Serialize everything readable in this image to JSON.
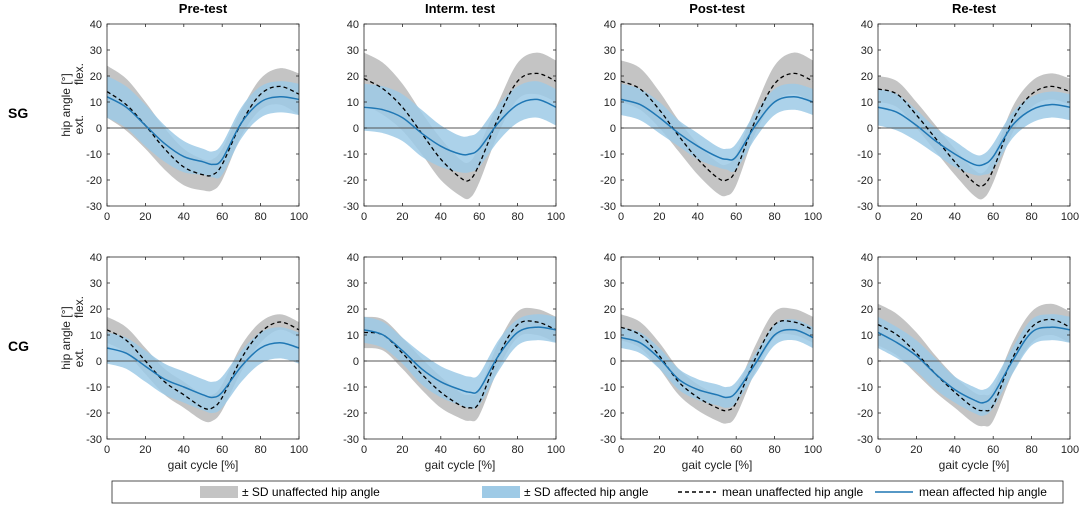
{
  "chart_data": {
    "type": "line",
    "row_labels": [
      "SG",
      "CG"
    ],
    "column_titles": [
      "Pre-test",
      "Interm. test",
      "Post-test",
      "Re-test"
    ],
    "ylabel": "hip angle [°]",
    "ylabel_flex": "flex.",
    "ylabel_ext": "ext.",
    "xlabel": "gait cycle [%]",
    "xlim": [
      0,
      100
    ],
    "ylim": [
      -30,
      40
    ],
    "x_ticks": [
      0,
      20,
      40,
      60,
      80,
      100
    ],
    "y_ticks": [
      -30,
      -20,
      -10,
      0,
      10,
      20,
      30,
      40
    ],
    "legend": [
      {
        "label": "± SD unaffected hip angle",
        "kind": "band",
        "color": "#c4c4c4"
      },
      {
        "label": "± SD affected hip angle",
        "kind": "band",
        "color": "#9ecae6"
      },
      {
        "label": "mean unaffected hip angle",
        "kind": "dashed",
        "color": "#000000"
      },
      {
        "label": "mean affected hip angle",
        "kind": "line",
        "color": "#1f77b4"
      }
    ],
    "colors": {
      "unaffected_band": "#c4c4c4",
      "affected_band": "#9ecae6",
      "overlap_band": "#4a8fc4",
      "affected_mean": "#1f77b4",
      "unaffected_mean": "#000000",
      "zero_line": "#555555"
    },
    "x": [
      0,
      10,
      20,
      30,
      40,
      50,
      55,
      60,
      70,
      80,
      90,
      100
    ],
    "panels": [
      {
        "row": "SG",
        "column": "Pre-test",
        "unaffected_mean": [
          14,
          9,
          1,
          -8,
          -15,
          -18,
          -18,
          -14,
          2,
          13,
          16,
          13
        ],
        "unaffected_sd": [
          10,
          10,
          9,
          8,
          7,
          6,
          6,
          6,
          5,
          6,
          7,
          8
        ],
        "affected_mean": [
          12,
          8,
          1,
          -6,
          -11,
          -13,
          -14,
          -12,
          2,
          10,
          12,
          11
        ],
        "affected_sd": [
          8,
          8,
          8,
          7,
          6,
          5,
          5,
          6,
          6,
          6,
          6,
          6
        ]
      },
      {
        "row": "SG",
        "column": "Interm. test",
        "unaffected_mean": [
          19,
          15,
          8,
          -2,
          -12,
          -19,
          -20,
          -14,
          4,
          18,
          21,
          18
        ],
        "unaffected_sd": [
          10,
          10,
          9,
          8,
          8,
          7,
          7,
          7,
          6,
          7,
          8,
          8
        ],
        "affected_mean": [
          8,
          7,
          4,
          -2,
          -7,
          -10,
          -10,
          -8,
          2,
          9,
          11,
          8
        ],
        "affected_sd": [
          9,
          9,
          9,
          9,
          8,
          7,
          7,
          7,
          7,
          7,
          7,
          7
        ]
      },
      {
        "row": "SG",
        "column": "Post-test",
        "unaffected_mean": [
          18,
          15,
          7,
          -3,
          -12,
          -19,
          -20,
          -16,
          3,
          17,
          21,
          18
        ],
        "unaffected_sd": [
          8,
          8,
          7,
          6,
          6,
          6,
          6,
          6,
          5,
          7,
          8,
          8
        ],
        "affected_mean": [
          11,
          9,
          4,
          -2,
          -7,
          -11,
          -12,
          -11,
          1,
          10,
          12,
          10
        ],
        "affected_sd": [
          6,
          6,
          6,
          5,
          5,
          4,
          4,
          5,
          5,
          5,
          5,
          5
        ]
      },
      {
        "row": "SG",
        "column": "Re-test",
        "unaffected_mean": [
          15,
          13,
          5,
          -4,
          -13,
          -21,
          -22,
          -16,
          3,
          13,
          16,
          14
        ],
        "unaffected_sd": [
          5,
          5,
          5,
          5,
          5,
          5,
          5,
          5,
          5,
          5,
          5,
          5
        ],
        "affected_mean": [
          8,
          6,
          1,
          -5,
          -10,
          -14,
          -14,
          -11,
          1,
          7,
          9,
          8
        ],
        "affected_sd": [
          7,
          7,
          6,
          5,
          5,
          4,
          4,
          5,
          5,
          5,
          5,
          5
        ]
      },
      {
        "row": "CG",
        "column": "Pre-test",
        "unaffected_mean": [
          12,
          8,
          0,
          -8,
          -13,
          -18,
          -18,
          -14,
          1,
          11,
          15,
          12
        ],
        "unaffected_sd": [
          5,
          5,
          5,
          5,
          5,
          5,
          5,
          5,
          5,
          4,
          3,
          3
        ],
        "affected_mean": [
          5,
          3,
          -2,
          -7,
          -10,
          -13,
          -14,
          -12,
          -2,
          5,
          7,
          5
        ],
        "affected_sd": [
          6,
          6,
          6,
          6,
          6,
          6,
          6,
          6,
          6,
          6,
          6,
          6
        ]
      },
      {
        "row": "CG",
        "column": "Interm. test",
        "unaffected_mean": [
          11,
          10,
          3,
          -5,
          -12,
          -17,
          -18,
          -16,
          2,
          14,
          15,
          12
        ],
        "unaffected_sd": [
          6,
          6,
          6,
          6,
          6,
          5,
          5,
          5,
          5,
          5,
          5,
          5
        ],
        "affected_mean": [
          12,
          10,
          4,
          -3,
          -8,
          -11,
          -12,
          -11,
          2,
          11,
          13,
          12
        ],
        "affected_sd": [
          5,
          5,
          5,
          6,
          6,
          6,
          6,
          6,
          6,
          5,
          5,
          5
        ]
      },
      {
        "row": "CG",
        "column": "Post-test",
        "unaffected_mean": [
          13,
          10,
          2,
          -8,
          -14,
          -18,
          -19,
          -16,
          1,
          14,
          15,
          12
        ],
        "unaffected_sd": [
          5,
          5,
          5,
          5,
          5,
          5,
          5,
          5,
          5,
          5,
          5,
          5
        ],
        "affected_mean": [
          9,
          7,
          1,
          -7,
          -11,
          -13,
          -14,
          -12,
          -1,
          10,
          12,
          9
        ],
        "affected_sd": [
          4,
          4,
          4,
          4,
          4,
          4,
          4,
          4,
          4,
          4,
          4,
          4
        ]
      },
      {
        "row": "CG",
        "column": "Re-test",
        "unaffected_mean": [
          14,
          10,
          3,
          -5,
          -12,
          -18,
          -19,
          -17,
          1,
          13,
          16,
          13
        ],
        "unaffected_sd": [
          8,
          8,
          8,
          7,
          6,
          6,
          6,
          6,
          6,
          6,
          6,
          6
        ],
        "affected_mean": [
          11,
          7,
          2,
          -5,
          -11,
          -15,
          -16,
          -13,
          0,
          11,
          13,
          12
        ],
        "affected_sd": [
          6,
          6,
          6,
          6,
          5,
          5,
          5,
          5,
          5,
          5,
          5,
          5
        ]
      }
    ]
  }
}
